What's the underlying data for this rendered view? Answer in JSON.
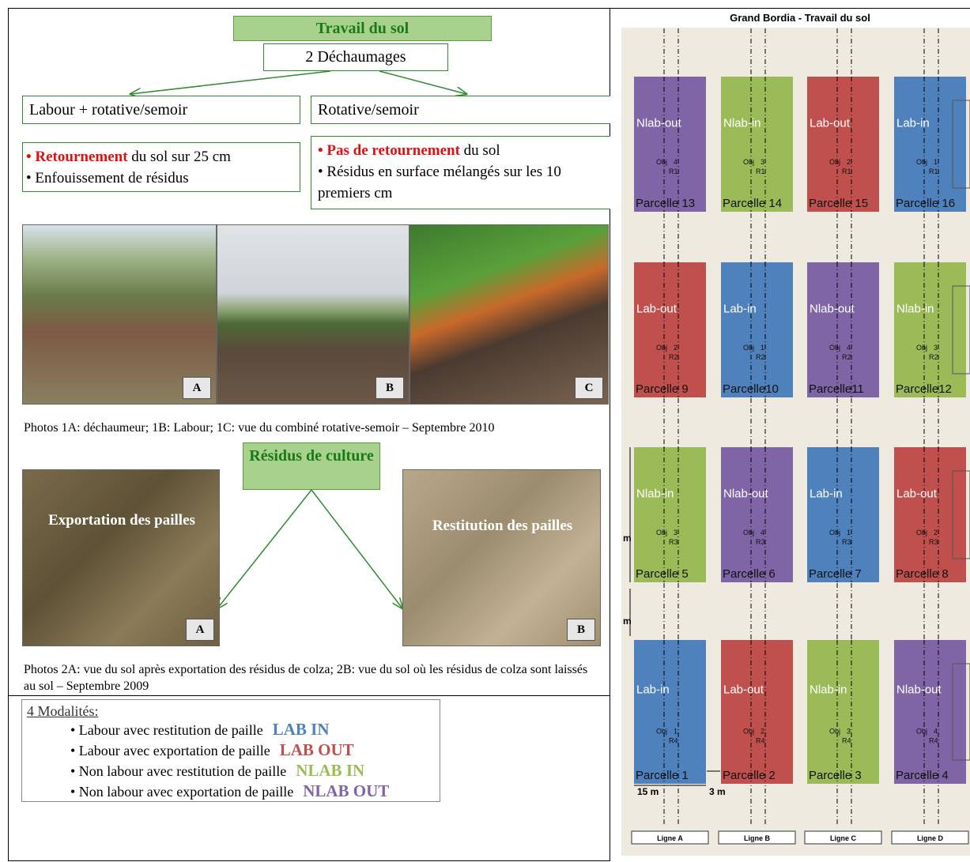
{
  "left": {
    "title": "Travail du sol",
    "subtitle": "2 Déchaumages",
    "branch_left": "Labour +  rotative/semoir",
    "branch_right": "Rotative/semoir",
    "desc_left": {
      "item1": {
        "prefix": "• ",
        "emph": "Retournement",
        "rest": " du sol sur 25 cm"
      },
      "item2": "• Enfouissement de résidus"
    },
    "desc_right": {
      "item1": {
        "prefix": "• ",
        "emph": "Pas de retournement",
        "rest": " du sol"
      },
      "item2": "• Résidus en surface mélangés sur les 10 premiers cm"
    },
    "photos1": [
      "A",
      "B",
      "C"
    ],
    "caption1": "Photos 1A: déchaumeur; 1B: Labour; 1C: vue du combiné rotative-semoir – Septembre 2010",
    "residus_title": "Résidus de culture",
    "photos2": [
      {
        "overlay": "Exportation des pailles",
        "label": "A"
      },
      {
        "overlay": "Restitution des pailles",
        "label": "B"
      }
    ],
    "caption2": "Photos 2A: vue du sol après exportation des résidus de colza; 2B: vue du sol où les résidus de colza sont laissés au sol – Septembre 2009",
    "modalites": {
      "title": "4 Modalités:",
      "items": [
        {
          "text": "• Labour  avec restitution de paille",
          "code": "LAB IN",
          "color": "#4f81bd"
        },
        {
          "text": "• Labour avec exportation de paille",
          "code": "LAB OUT",
          "color": "#c0504d"
        },
        {
          "text": "• Non labour avec restitution de paille",
          "code": "NLAB IN",
          "color": "#9bbb59"
        },
        {
          "text": "• Non labour avec exportation de paille",
          "code": "NLAB OUT",
          "color": "#7f64a6"
        }
      ]
    }
  },
  "right": {
    "title": "Grand Bordia - Travail du sol",
    "obj_label": "Obj",
    "rows": [
      [
        {
          "name": "Nlab-out",
          "obj": "4",
          "rep": "R1",
          "label": "Parcelle 13",
          "color": "#7f64a6"
        },
        {
          "name": "Nlab-in",
          "obj": "3",
          "rep": "R1",
          "label": "Parcelle 14",
          "color": "#9bbb59"
        },
        {
          "name": "Lab-out",
          "obj": "2",
          "rep": "R1",
          "label": "Parcelle 15",
          "color": "#c0504d"
        },
        {
          "name": "Lab-in",
          "obj": "1",
          "rep": "R1",
          "label": "Parcelle 16",
          "color": "#4f81bd"
        }
      ],
      [
        {
          "name": "Lab-out",
          "obj": "2",
          "rep": "R2",
          "label": "Parcelle 9",
          "color": "#c0504d"
        },
        {
          "name": "Lab-in",
          "obj": "1",
          "rep": "R2",
          "label": "Parcelle10",
          "color": "#4f81bd"
        },
        {
          "name": "Nlab-out",
          "obj": "4",
          "rep": "R2",
          "label": "Parcelle11",
          "color": "#7f64a6"
        },
        {
          "name": "Nlab-in",
          "obj": "3",
          "rep": "R2",
          "label": "Parcelle12",
          "color": "#9bbb59"
        }
      ],
      [
        {
          "name": "Nlab-in",
          "obj": "3",
          "rep": "R3",
          "label": "Parcelle 5",
          "color": "#9bbb59"
        },
        {
          "name": "Nlab-out",
          "obj": "4",
          "rep": "R3",
          "label": "Parcelle 6",
          "color": "#7f64a6"
        },
        {
          "name": "Lab-in",
          "obj": "1",
          "rep": "R3",
          "label": "Parcelle 7",
          "color": "#4f81bd"
        },
        {
          "name": "Lab-out",
          "obj": "2",
          "rep": "R3",
          "label": "Parcelle 8",
          "color": "#c0504d"
        }
      ],
      [
        {
          "name": "Lab-in",
          "obj": "1",
          "rep": "R4",
          "label": "Parcelle 1",
          "color": "#4f81bd"
        },
        {
          "name": "Lab-out",
          "obj": "2",
          "rep": "R4",
          "label": "Parcelle 2",
          "color": "#c0504d"
        },
        {
          "name": "Nlab-in",
          "obj": "3",
          "rep": "R4",
          "label": "Parcelle 3",
          "color": "#9bbb59"
        },
        {
          "name": "Nlab-out",
          "obj": "4",
          "rep": "R4",
          "label": "Parcelle 4",
          "color": "#7f64a6"
        }
      ]
    ],
    "lines": [
      "Ligne A",
      "Ligne B",
      "Ligne C",
      "Ligne D"
    ],
    "dimensions": {
      "width": "15 m",
      "gap": "3 m",
      "height": "m",
      "row_gap": "m"
    }
  }
}
